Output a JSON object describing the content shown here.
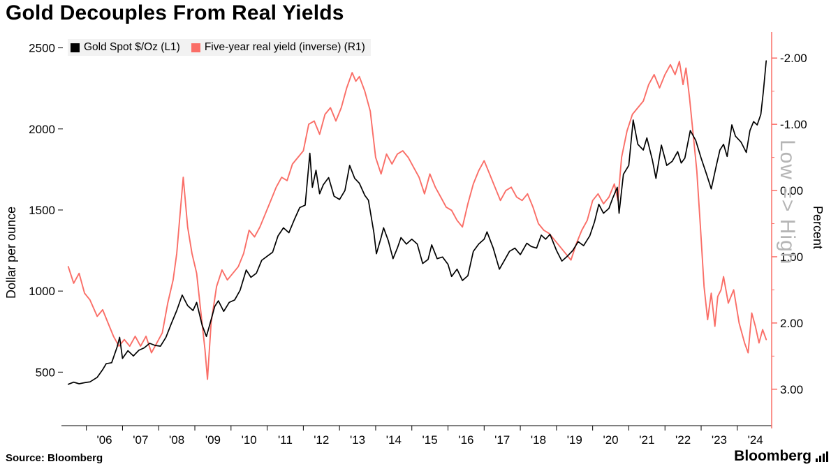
{
  "footer": {
    "source": "Source: Bloomberg",
    "brand": "Bloomberg"
  },
  "chart_data": {
    "type": "line",
    "title": "Gold Decouples From Real Yields",
    "annotation": "Low => High",
    "legend_position": "top-left",
    "grid": false,
    "x_axis": {
      "years": [
        2006,
        2007,
        2008,
        2009,
        2010,
        2011,
        2012,
        2013,
        2014,
        2015,
        2016,
        2017,
        2018,
        2019,
        2020,
        2021,
        2022,
        2023,
        2024
      ],
      "tick_labels": [
        "'06",
        "'07",
        "'08",
        "'09",
        "'10",
        "'11",
        "'12",
        "'13",
        "'14",
        "'15",
        "'16",
        "'17",
        "'18",
        "'19",
        "'20",
        "'21",
        "'22",
        "'23",
        "'24"
      ],
      "range": [
        2004.85,
        2024.45
      ]
    },
    "left_axis": {
      "label": "Dollar per ounce",
      "ticks": [
        500,
        1000,
        1500,
        2000,
        2500
      ],
      "tick_labels": [
        "500",
        "1000",
        "1500",
        "2000",
        "2500"
      ],
      "range": [
        170,
        2580
      ]
    },
    "right_axis": {
      "label": "Percent",
      "inverted": true,
      "ticks": [
        -2,
        -1,
        0,
        1,
        2,
        3
      ],
      "tick_labels": [
        "-2.00",
        "-1.00",
        "0.00",
        "1.00",
        "2.00",
        "3.00"
      ],
      "range": [
        -2.35,
        3.55
      ],
      "color": "#fa6e67"
    },
    "series": [
      {
        "name": "Gold Spot $/Oz  (L1)",
        "axis": "left",
        "color": "#000000",
        "points": [
          [
            2005.0,
            425
          ],
          [
            2005.15,
            438
          ],
          [
            2005.3,
            428
          ],
          [
            2005.45,
            435
          ],
          [
            2005.6,
            440
          ],
          [
            2005.8,
            468
          ],
          [
            2005.95,
            515
          ],
          [
            2006.05,
            552
          ],
          [
            2006.2,
            558
          ],
          [
            2006.35,
            655
          ],
          [
            2006.42,
            715
          ],
          [
            2006.5,
            585
          ],
          [
            2006.65,
            632
          ],
          [
            2006.8,
            600
          ],
          [
            2006.95,
            635
          ],
          [
            2007.1,
            650
          ],
          [
            2007.25,
            678
          ],
          [
            2007.4,
            665
          ],
          [
            2007.55,
            660
          ],
          [
            2007.7,
            715
          ],
          [
            2007.85,
            800
          ],
          [
            2008.0,
            880
          ],
          [
            2008.15,
            975
          ],
          [
            2008.3,
            910
          ],
          [
            2008.45,
            880
          ],
          [
            2008.55,
            930
          ],
          [
            2008.7,
            790
          ],
          [
            2008.82,
            720
          ],
          [
            2008.92,
            800
          ],
          [
            2009.05,
            905
          ],
          [
            2009.15,
            940
          ],
          [
            2009.3,
            875
          ],
          [
            2009.45,
            930
          ],
          [
            2009.6,
            945
          ],
          [
            2009.75,
            1005
          ],
          [
            2009.92,
            1130
          ],
          [
            2010.05,
            1085
          ],
          [
            2010.2,
            1110
          ],
          [
            2010.35,
            1190
          ],
          [
            2010.5,
            1215
          ],
          [
            2010.65,
            1240
          ],
          [
            2010.8,
            1340
          ],
          [
            2010.95,
            1390
          ],
          [
            2011.1,
            1360
          ],
          [
            2011.25,
            1440
          ],
          [
            2011.4,
            1515
          ],
          [
            2011.55,
            1530
          ],
          [
            2011.68,
            1850
          ],
          [
            2011.75,
            1640
          ],
          [
            2011.85,
            1745
          ],
          [
            2011.95,
            1600
          ],
          [
            2012.05,
            1655
          ],
          [
            2012.2,
            1700
          ],
          [
            2012.35,
            1585
          ],
          [
            2012.5,
            1565
          ],
          [
            2012.65,
            1620
          ],
          [
            2012.78,
            1775
          ],
          [
            2012.92,
            1695
          ],
          [
            2013.05,
            1665
          ],
          [
            2013.2,
            1590
          ],
          [
            2013.3,
            1560
          ],
          [
            2013.45,
            1360
          ],
          [
            2013.52,
            1230
          ],
          [
            2013.65,
            1330
          ],
          [
            2013.72,
            1390
          ],
          [
            2013.85,
            1310
          ],
          [
            2013.98,
            1200
          ],
          [
            2014.1,
            1265
          ],
          [
            2014.2,
            1330
          ],
          [
            2014.35,
            1290
          ],
          [
            2014.5,
            1320
          ],
          [
            2014.65,
            1290
          ],
          [
            2014.8,
            1170
          ],
          [
            2014.95,
            1195
          ],
          [
            2015.05,
            1285
          ],
          [
            2015.2,
            1200
          ],
          [
            2015.35,
            1210
          ],
          [
            2015.5,
            1165
          ],
          [
            2015.6,
            1090
          ],
          [
            2015.75,
            1135
          ],
          [
            2015.9,
            1065
          ],
          [
            2016.05,
            1095
          ],
          [
            2016.2,
            1245
          ],
          [
            2016.35,
            1290
          ],
          [
            2016.5,
            1320
          ],
          [
            2016.58,
            1365
          ],
          [
            2016.75,
            1265
          ],
          [
            2016.92,
            1135
          ],
          [
            2017.05,
            1185
          ],
          [
            2017.2,
            1245
          ],
          [
            2017.35,
            1265
          ],
          [
            2017.5,
            1225
          ],
          [
            2017.68,
            1295
          ],
          [
            2017.8,
            1275
          ],
          [
            2017.95,
            1265
          ],
          [
            2018.08,
            1345
          ],
          [
            2018.2,
            1320
          ],
          [
            2018.32,
            1350
          ],
          [
            2018.5,
            1250
          ],
          [
            2018.65,
            1185
          ],
          [
            2018.8,
            1215
          ],
          [
            2018.95,
            1250
          ],
          [
            2019.1,
            1305
          ],
          [
            2019.25,
            1280
          ],
          [
            2019.42,
            1340
          ],
          [
            2019.55,
            1425
          ],
          [
            2019.67,
            1535
          ],
          [
            2019.8,
            1480
          ],
          [
            2019.95,
            1510
          ],
          [
            2020.05,
            1570
          ],
          [
            2020.18,
            1640
          ],
          [
            2020.23,
            1480
          ],
          [
            2020.35,
            1720
          ],
          [
            2020.5,
            1775
          ],
          [
            2020.62,
            2055
          ],
          [
            2020.75,
            1905
          ],
          [
            2020.9,
            1870
          ],
          [
            2021.0,
            1945
          ],
          [
            2021.15,
            1810
          ],
          [
            2021.25,
            1695
          ],
          [
            2021.4,
            1900
          ],
          [
            2021.55,
            1775
          ],
          [
            2021.7,
            1800
          ],
          [
            2021.85,
            1860
          ],
          [
            2021.95,
            1790
          ],
          [
            2022.05,
            1820
          ],
          [
            2022.2,
            1990
          ],
          [
            2022.35,
            1930
          ],
          [
            2022.5,
            1820
          ],
          [
            2022.65,
            1720
          ],
          [
            2022.78,
            1630
          ],
          [
            2022.92,
            1775
          ],
          [
            2023.02,
            1870
          ],
          [
            2023.12,
            1905
          ],
          [
            2023.22,
            1830
          ],
          [
            2023.35,
            2025
          ],
          [
            2023.45,
            1955
          ],
          [
            2023.6,
            1920
          ],
          [
            2023.75,
            1855
          ],
          [
            2023.85,
            1990
          ],
          [
            2023.95,
            2045
          ],
          [
            2024.05,
            2025
          ],
          [
            2024.15,
            2090
          ],
          [
            2024.22,
            2230
          ],
          [
            2024.3,
            2420
          ]
        ]
      },
      {
        "name": "Five-year real yield (inverse) (R1)",
        "axis": "right",
        "color": "#fa6e67",
        "points": [
          [
            2005.0,
            1.15
          ],
          [
            2005.15,
            1.4
          ],
          [
            2005.3,
            1.25
          ],
          [
            2005.45,
            1.55
          ],
          [
            2005.6,
            1.65
          ],
          [
            2005.8,
            1.9
          ],
          [
            2005.95,
            1.8
          ],
          [
            2006.1,
            2.0
          ],
          [
            2006.25,
            2.2
          ],
          [
            2006.4,
            2.35
          ],
          [
            2006.55,
            2.25
          ],
          [
            2006.7,
            2.35
          ],
          [
            2006.85,
            2.2
          ],
          [
            2007.0,
            2.35
          ],
          [
            2007.15,
            2.2
          ],
          [
            2007.3,
            2.45
          ],
          [
            2007.45,
            2.3
          ],
          [
            2007.6,
            2.15
          ],
          [
            2007.75,
            1.7
          ],
          [
            2007.9,
            1.35
          ],
          [
            2008.0,
            0.95
          ],
          [
            2008.1,
            0.3
          ],
          [
            2008.18,
            -0.2
          ],
          [
            2008.3,
            0.55
          ],
          [
            2008.42,
            0.95
          ],
          [
            2008.55,
            1.25
          ],
          [
            2008.68,
            1.9
          ],
          [
            2008.78,
            2.4
          ],
          [
            2008.85,
            2.85
          ],
          [
            2008.95,
            2.0
          ],
          [
            2009.1,
            1.45
          ],
          [
            2009.25,
            1.2
          ],
          [
            2009.4,
            1.35
          ],
          [
            2009.55,
            1.25
          ],
          [
            2009.7,
            1.15
          ],
          [
            2009.85,
            0.95
          ],
          [
            2010.0,
            0.6
          ],
          [
            2010.15,
            0.7
          ],
          [
            2010.3,
            0.55
          ],
          [
            2010.45,
            0.35
          ],
          [
            2010.6,
            0.15
          ],
          [
            2010.75,
            -0.05
          ],
          [
            2010.9,
            -0.2
          ],
          [
            2011.05,
            -0.15
          ],
          [
            2011.2,
            -0.4
          ],
          [
            2011.35,
            -0.5
          ],
          [
            2011.5,
            -0.6
          ],
          [
            2011.65,
            -1.0
          ],
          [
            2011.8,
            -1.05
          ],
          [
            2011.95,
            -0.85
          ],
          [
            2012.1,
            -1.15
          ],
          [
            2012.25,
            -1.25
          ],
          [
            2012.4,
            -1.05
          ],
          [
            2012.55,
            -1.25
          ],
          [
            2012.7,
            -1.55
          ],
          [
            2012.85,
            -1.78
          ],
          [
            2012.95,
            -1.65
          ],
          [
            2013.05,
            -1.72
          ],
          [
            2013.2,
            -1.5
          ],
          [
            2013.35,
            -1.2
          ],
          [
            2013.5,
            -0.5
          ],
          [
            2013.65,
            -0.25
          ],
          [
            2013.8,
            -0.55
          ],
          [
            2013.95,
            -0.4
          ],
          [
            2014.1,
            -0.55
          ],
          [
            2014.25,
            -0.6
          ],
          [
            2014.4,
            -0.5
          ],
          [
            2014.55,
            -0.35
          ],
          [
            2014.7,
            -0.2
          ],
          [
            2014.85,
            0.05
          ],
          [
            2015.0,
            -0.25
          ],
          [
            2015.15,
            -0.05
          ],
          [
            2015.3,
            0.1
          ],
          [
            2015.45,
            0.25
          ],
          [
            2015.6,
            0.3
          ],
          [
            2015.75,
            0.45
          ],
          [
            2015.9,
            0.55
          ],
          [
            2016.05,
            0.2
          ],
          [
            2016.2,
            -0.1
          ],
          [
            2016.35,
            -0.3
          ],
          [
            2016.5,
            -0.45
          ],
          [
            2016.65,
            -0.25
          ],
          [
            2016.8,
            -0.05
          ],
          [
            2016.95,
            0.15
          ],
          [
            2017.1,
            0.0
          ],
          [
            2017.25,
            -0.05
          ],
          [
            2017.4,
            0.1
          ],
          [
            2017.55,
            0.15
          ],
          [
            2017.7,
            0.05
          ],
          [
            2017.85,
            0.25
          ],
          [
            2018.0,
            0.5
          ],
          [
            2018.15,
            0.6
          ],
          [
            2018.3,
            0.65
          ],
          [
            2018.45,
            0.75
          ],
          [
            2018.6,
            0.85
          ],
          [
            2018.75,
            0.95
          ],
          [
            2018.9,
            1.05
          ],
          [
            2019.05,
            0.8
          ],
          [
            2019.2,
            0.6
          ],
          [
            2019.35,
            0.45
          ],
          [
            2019.5,
            0.15
          ],
          [
            2019.65,
            0.05
          ],
          [
            2019.8,
            0.2
          ],
          [
            2019.95,
            0.1
          ],
          [
            2020.1,
            -0.1
          ],
          [
            2020.2,
            0.15
          ],
          [
            2020.3,
            -0.5
          ],
          [
            2020.45,
            -0.9
          ],
          [
            2020.6,
            -1.15
          ],
          [
            2020.75,
            -1.25
          ],
          [
            2020.9,
            -1.35
          ],
          [
            2021.05,
            -1.6
          ],
          [
            2021.2,
            -1.75
          ],
          [
            2021.35,
            -1.55
          ],
          [
            2021.5,
            -1.75
          ],
          [
            2021.65,
            -1.9
          ],
          [
            2021.78,
            -1.75
          ],
          [
            2021.9,
            -1.95
          ],
          [
            2022.0,
            -1.6
          ],
          [
            2022.08,
            -1.85
          ],
          [
            2022.18,
            -1.4
          ],
          [
            2022.28,
            -0.85
          ],
          [
            2022.38,
            -0.3
          ],
          [
            2022.48,
            0.55
          ],
          [
            2022.58,
            1.45
          ],
          [
            2022.68,
            1.95
          ],
          [
            2022.78,
            1.55
          ],
          [
            2022.88,
            2.05
          ],
          [
            2022.96,
            1.6
          ],
          [
            2023.05,
            1.5
          ],
          [
            2023.12,
            1.3
          ],
          [
            2023.25,
            1.7
          ],
          [
            2023.4,
            1.5
          ],
          [
            2023.55,
            2.0
          ],
          [
            2023.7,
            2.3
          ],
          [
            2023.8,
            2.45
          ],
          [
            2023.9,
            1.85
          ],
          [
            2024.0,
            2.05
          ],
          [
            2024.1,
            2.3
          ],
          [
            2024.2,
            2.1
          ],
          [
            2024.3,
            2.25
          ]
        ]
      }
    ]
  }
}
